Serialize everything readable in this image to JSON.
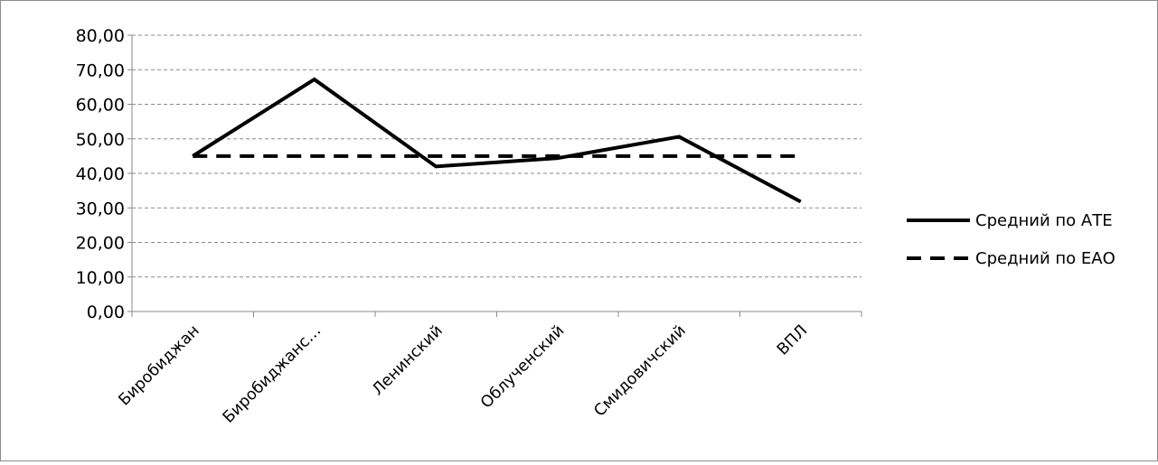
{
  "chart_data": {
    "type": "line",
    "categories": [
      "Биробиджан",
      "Биробиджанс…",
      "Ленинский",
      "Облученский",
      "Смидовичский",
      "ВПЛ"
    ],
    "series": [
      {
        "name": "Средний по АТЕ",
        "values": [
          45.0,
          67.2,
          42.0,
          44.4,
          50.6,
          31.8
        ],
        "style": "solid",
        "color": "#000000"
      },
      {
        "name": "Средний по ЕАО",
        "values": [
          45.0,
          45.0,
          45.0,
          45.0,
          45.0,
          45.0
        ],
        "style": "dashed",
        "color": "#000000"
      }
    ],
    "title": "",
    "xlabel": "",
    "ylabel": "",
    "ylim": [
      0,
      80
    ],
    "ytick_step": 10,
    "ytick_labels": [
      "0,00",
      "10,00",
      "20,00",
      "30,00",
      "40,00",
      "50,00",
      "60,00",
      "70,00",
      "80,00"
    ],
    "grid": true,
    "legend_position": "right"
  }
}
